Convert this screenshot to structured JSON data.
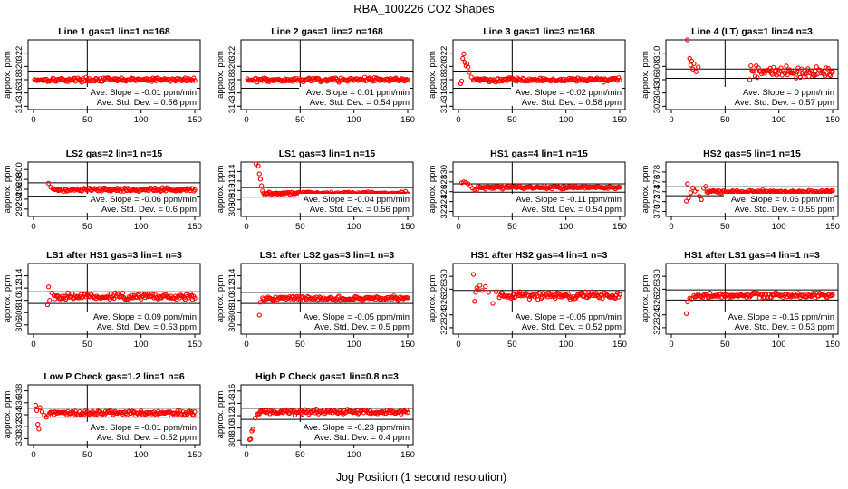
{
  "title": "RBA_100226  CO2 Shapes",
  "xlabel": "Jog Position (1 second resolution)",
  "chart_data": [
    {
      "type": "scatter",
      "title": "Line 1 gas=1 lin=1 n=168",
      "ylabel": "approx. ppm",
      "xlim": [
        0,
        150
      ],
      "ylim": [
        313.5,
        324
      ],
      "xticks": [
        0,
        50,
        100,
        150
      ],
      "yticks": [
        314,
        316,
        318,
        320,
        322
      ],
      "hlines": [
        319.3,
        316.7
      ],
      "vline": 50,
      "slope_label": "Ave. Slope =",
      "slope": "-0.01",
      "slope_unit": "ppm/min",
      "sd_label": "Ave. Std. Dev. =",
      "sd": "0.56",
      "sd_unit": "ppm",
      "marker_color": "#ff0000",
      "base": 318.0,
      "noise": 0.15,
      "points": []
    },
    {
      "type": "scatter",
      "title": "Line 2 gas=1 lin=2 n=168",
      "ylabel": "approx. ppm",
      "xlim": [
        0,
        150
      ],
      "ylim": [
        313.5,
        324
      ],
      "xticks": [
        0,
        50,
        100,
        150
      ],
      "yticks": [
        314,
        316,
        318,
        320,
        322
      ],
      "hlines": [
        319.3,
        316.7
      ],
      "vline": 50,
      "slope_label": "Ave. Slope =",
      "slope": "0.01",
      "slope_unit": "ppm/min",
      "sd_label": "Ave. Std. Dev. =",
      "sd": "0.54",
      "sd_unit": "ppm",
      "marker_color": "#ff0000",
      "base": 318.0,
      "noise": 0.15,
      "points": []
    },
    {
      "type": "scatter",
      "title": "Line 3 gas=1 lin=3 n=168",
      "ylabel": "approx. ppm",
      "xlim": [
        0,
        150
      ],
      "ylim": [
        313.5,
        324
      ],
      "xticks": [
        0,
        50,
        100,
        150
      ],
      "yticks": [
        314,
        316,
        318,
        320,
        322
      ],
      "hlines": [
        319.3,
        316.7
      ],
      "vline": 50,
      "slope_label": "Ave. Slope =",
      "slope": "-0.02",
      "slope_unit": "ppm/min",
      "sd_label": "Ave. Std. Dev. =",
      "sd": "0.58",
      "sd_unit": "ppm",
      "marker_color": "#ff0000",
      "base": 318.0,
      "noise": 0.15,
      "points": [
        [
          2,
          317.4
        ],
        [
          3,
          317.8
        ],
        [
          4,
          321.2
        ],
        [
          5,
          321.9
        ],
        [
          6,
          320.6
        ],
        [
          7,
          320.1
        ],
        [
          8,
          320.4
        ],
        [
          9,
          319.9
        ],
        [
          10,
          319.1
        ],
        [
          12,
          318.4
        ],
        [
          14,
          317.9
        ]
      ]
    },
    {
      "type": "scatter",
      "title": "Line 4 (LT) gas=1 lin=4 n=3",
      "ylabel": "approx. ppm",
      "xlim": [
        0,
        150
      ],
      "ylim": [
        301.5,
        312
      ],
      "xticks": [
        0,
        50,
        100,
        150
      ],
      "yticks": [
        302,
        304,
        306,
        308,
        310
      ],
      "hlines": [
        307.6,
        306.2
      ],
      "vline": 50,
      "slope_label": "Ave. Slope =",
      "slope": "0",
      "slope_unit": "ppm/min",
      "sd_label": "Ave. Std. Dev. =",
      "sd": "0.57",
      "sd_unit": "ppm",
      "marker_color": "#ff0000",
      "base": 307.1,
      "noise": 0.4,
      "points": [
        [
          15,
          312.0
        ],
        [
          17,
          309.2
        ],
        [
          18,
          308.2
        ],
        [
          19,
          308.8
        ],
        [
          20,
          307.6
        ],
        [
          21,
          308.4
        ],
        [
          23,
          307.2
        ],
        [
          25,
          307.9
        ],
        [
          73,
          306.0
        ]
      ]
    },
    {
      "type": "scatter",
      "title": "LS2 gas=2 lin=1 n=15",
      "ylabel": "approx. ppm",
      "xlim": [
        0,
        150
      ],
      "ylim": [
        290.5,
        301.5
      ],
      "xticks": [
        0,
        50,
        100,
        150
      ],
      "yticks": [
        292,
        294,
        296,
        298,
        300
      ],
      "hlines": [
        297.3,
        294.6
      ],
      "vline": 50,
      "slope_label": "Ave. Slope =",
      "slope": "-0.06",
      "slope_unit": "ppm/min",
      "sd_label": "Ave. Std. Dev. =",
      "sd": "0.6",
      "sd_unit": "ppm",
      "marker_color": "#ff0000",
      "base": 295.9,
      "noise": 0.18,
      "points": [
        [
          14,
          297.2
        ],
        [
          16,
          296.4
        ],
        [
          18,
          296.1
        ]
      ]
    },
    {
      "type": "scatter",
      "title": "LS1 gas=3 lin=1 n=15",
      "ylabel": "approx. ppm",
      "xlim": [
        0,
        150
      ],
      "ylim": [
        304.5,
        316
      ],
      "xticks": [
        0,
        50,
        100,
        150
      ],
      "yticks": [
        306,
        308,
        310,
        312,
        314
      ],
      "hlines": [
        310.6,
        308.6
      ],
      "vline": 50,
      "slope_label": "Ave. Slope =",
      "slope": "-0.04",
      "slope_unit": "ppm/min",
      "sd_label": "Ave. Std. Dev. =",
      "sd": "0.56",
      "sd_unit": "ppm",
      "marker_color": "#ff0000",
      "base": 309.4,
      "noise": 0.15,
      "points": [
        [
          9,
          315.6
        ],
        [
          11,
          315.2
        ],
        [
          12,
          313.5
        ],
        [
          13,
          312.4
        ],
        [
          14,
          311.0
        ],
        [
          15,
          309.9
        ]
      ]
    },
    {
      "type": "scatter",
      "title": "HS1 gas=4 lin=1 n=15",
      "ylabel": "approx. ppm",
      "xlim": [
        0,
        150
      ],
      "ylim": [
        321,
        332
      ],
      "xticks": [
        0,
        50,
        100,
        150
      ],
      "yticks": [
        322,
        324,
        326,
        328,
        330
      ],
      "hlines": [
        327.6,
        325.9
      ],
      "vline": 50,
      "slope_label": "Ave. Slope =",
      "slope": "-0.11",
      "slope_unit": "ppm/min",
      "sd_label": "Ave. Std. Dev. =",
      "sd": "0.54",
      "sd_unit": "ppm",
      "marker_color": "#ff0000",
      "base": 326.9,
      "noise": 0.15,
      "points": [
        [
          3,
          327.8
        ],
        [
          5,
          328.0
        ],
        [
          7,
          327.9
        ],
        [
          9,
          327.6
        ],
        [
          11,
          327.2
        ],
        [
          13,
          326.7
        ],
        [
          15,
          326.4
        ],
        [
          17,
          326.3
        ]
      ]
    },
    {
      "type": "scatter",
      "title": "HS2 gas=5 lin=1 n=15",
      "ylabel": "approx. ppm",
      "xlim": [
        0,
        150
      ],
      "ylim": [
        369,
        380
      ],
      "xticks": [
        0,
        50,
        100,
        150
      ],
      "yticks": [
        370,
        372,
        374,
        376,
        378
      ],
      "hlines": [
        375.0,
        373.2
      ],
      "vline": 50,
      "slope_label": "Ave. Slope =",
      "slope": "0.06",
      "slope_unit": "ppm/min",
      "sd_label": "Ave. Std. Dev. =",
      "sd": "0.55",
      "sd_unit": "ppm",
      "marker_color": "#ff0000",
      "base": 374.0,
      "noise": 0.15,
      "points": [
        [
          14,
          372.1
        ],
        [
          15,
          375.6
        ],
        [
          16,
          372.7
        ],
        [
          18,
          373.8
        ],
        [
          20,
          374.8
        ],
        [
          22,
          374.1
        ],
        [
          24,
          374.6
        ],
        [
          26,
          373.1
        ],
        [
          28,
          372.4
        ],
        [
          30,
          374.7
        ],
        [
          32,
          375.1
        ]
      ]
    },
    {
      "type": "scatter",
      "title": "LS1 after HS1 gas=3 lin=1 n=3",
      "ylabel": "approx. ppm",
      "xlim": [
        0,
        150
      ],
      "ylim": [
        304.5,
        316
      ],
      "xticks": [
        0,
        50,
        100,
        150
      ],
      "yticks": [
        306,
        308,
        310,
        312,
        314
      ],
      "hlines": [
        311.4,
        309.5
      ],
      "vline": 50,
      "slope_label": "Ave. Slope =",
      "slope": "0.09",
      "slope_unit": "ppm/min",
      "sd_label": "Ave. Std. Dev. =",
      "sd": "0.53",
      "sd_unit": "ppm",
      "marker_color": "#ff0000",
      "base": 310.6,
      "noise": 0.25,
      "points": [
        [
          13,
          309.3
        ],
        [
          14,
          312.2
        ],
        [
          15,
          310.0
        ],
        [
          17,
          311.2
        ],
        [
          19,
          310.8
        ]
      ]
    },
    {
      "type": "scatter",
      "title": "LS1 after LS2 gas=3 lin=1 n=3",
      "ylabel": "approx. ppm",
      "xlim": [
        0,
        150
      ],
      "ylim": [
        304.5,
        316
      ],
      "xticks": [
        0,
        50,
        100,
        150
      ],
      "yticks": [
        306,
        308,
        310,
        312,
        314
      ],
      "hlines": [
        311.3,
        309.5
      ],
      "vline": 50,
      "slope_label": "Ave. Slope =",
      "slope": "-0.05",
      "slope_unit": "ppm/min",
      "sd_label": "Ave. Std. Dev. =",
      "sd": "0.5",
      "sd_unit": "ppm",
      "marker_color": "#ff0000",
      "base": 310.3,
      "noise": 0.2,
      "points": [
        [
          12,
          307.6
        ],
        [
          13,
          309.7
        ],
        [
          15,
          310.4
        ]
      ]
    },
    {
      "type": "scatter",
      "title": "HS1 after HS2 gas=4 lin=1 n=3",
      "ylabel": "approx. ppm",
      "xlim": [
        0,
        150
      ],
      "ylim": [
        321,
        332
      ],
      "xticks": [
        0,
        50,
        100,
        150
      ],
      "yticks": [
        322,
        324,
        326,
        328,
        330
      ],
      "hlines": [
        327.8,
        326.0
      ],
      "vline": 50,
      "slope_label": "Ave. Slope =",
      "slope": "-0.05",
      "slope_unit": "ppm/min",
      "sd_label": "Ave. Std. Dev. =",
      "sd": "0.52",
      "sd_unit": "ppm",
      "marker_color": "#ff0000",
      "base": 327.0,
      "noise": 0.25,
      "points": [
        [
          14,
          330.3
        ],
        [
          15,
          326.1
        ],
        [
          16,
          327.5
        ],
        [
          17,
          328.2
        ],
        [
          18,
          327.9
        ],
        [
          20,
          328.6
        ],
        [
          22,
          327.8
        ],
        [
          25,
          328.4
        ],
        [
          28,
          327.5
        ],
        [
          32,
          325.8
        ],
        [
          35,
          327.6
        ],
        [
          38,
          326.7
        ]
      ]
    },
    {
      "type": "scatter",
      "title": "HS1 after LS1 gas=4 lin=1 n=3",
      "ylabel": "approx. ppm",
      "xlim": [
        0,
        150
      ],
      "ylim": [
        321,
        332
      ],
      "xticks": [
        0,
        50,
        100,
        150
      ],
      "yticks": [
        322,
        324,
        326,
        328,
        330
      ],
      "hlines": [
        327.9,
        326.3
      ],
      "vline": 50,
      "slope_label": "Ave. Slope =",
      "slope": "-0.15",
      "slope_unit": "ppm/min",
      "sd_label": "Ave. Std. Dev. =",
      "sd": "0.53",
      "sd_unit": "ppm",
      "marker_color": "#ff0000",
      "base": 327.0,
      "noise": 0.2,
      "points": [
        [
          14,
          324.2
        ],
        [
          15,
          326.0
        ],
        [
          17,
          326.6
        ],
        [
          19,
          326.5
        ],
        [
          21,
          327.0
        ]
      ]
    },
    {
      "type": "scatter",
      "title": "Low P Check gas=1.2 lin=1 n=6",
      "ylabel": "approx. ppm",
      "xlim": [
        0,
        150
      ],
      "ylim": [
        329,
        339
      ],
      "xticks": [
        0,
        50,
        100,
        150
      ],
      "yticks": [
        330,
        332,
        334,
        336,
        338
      ],
      "hlines": [
        335.1,
        333.6
      ],
      "vline": 50,
      "slope_label": "Ave. Slope =",
      "slope": "-0.01",
      "slope_unit": "ppm/min",
      "sd_label": "Ave. Std. Dev. =",
      "sd": "0.52",
      "sd_unit": "ppm",
      "marker_color": "#ff0000",
      "base": 334.3,
      "noise": 0.18,
      "points": [
        [
          2,
          335.6
        ],
        [
          3,
          334.7
        ],
        [
          4,
          332.4
        ],
        [
          5,
          331.6
        ],
        [
          6,
          335.2
        ],
        [
          8,
          334.5
        ],
        [
          10,
          333.9
        ],
        [
          12,
          333.6
        ],
        [
          14,
          333.9
        ]
      ]
    },
    {
      "type": "scatter",
      "title": "High P Check gas=1 lin=0.8 n=3",
      "ylabel": "approx. ppm",
      "xlim": [
        0,
        150
      ],
      "ylim": [
        307.3,
        317
      ],
      "xticks": [
        0,
        50,
        100,
        150
      ],
      "yticks": [
        308,
        310,
        312,
        314,
        316
      ],
      "hlines": [
        313.2,
        311.4
      ],
      "vline": 50,
      "slope_label": "Ave. Slope =",
      "slope": "-0.23",
      "slope_unit": "ppm/min",
      "sd_label": "Ave. Std. Dev. =",
      "sd": "0.4",
      "sd_unit": "ppm",
      "marker_color": "#ff0000",
      "base": 312.6,
      "noise": 0.2,
      "points": [
        [
          3,
          308.1
        ],
        [
          4,
          308.2
        ],
        [
          5,
          309.5
        ],
        [
          6,
          309.8
        ],
        [
          8,
          311.6
        ],
        [
          10,
          312.2
        ]
      ]
    }
  ]
}
